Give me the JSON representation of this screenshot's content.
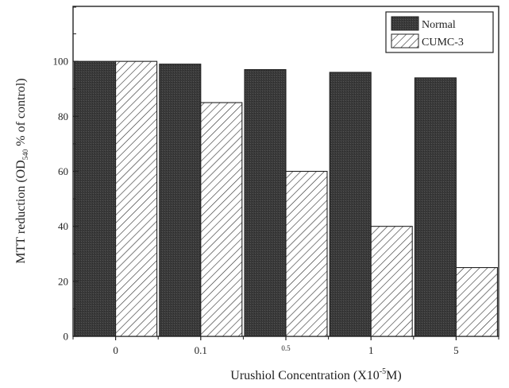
{
  "chart_data": {
    "type": "bar",
    "categories": [
      "0",
      "0.1",
      "0.5",
      "1",
      "5"
    ],
    "series": [
      {
        "name": "Normal",
        "values": [
          100,
          99,
          97,
          96,
          94
        ],
        "fill": "#3a3a3a",
        "pattern": "solid-dark"
      },
      {
        "name": "CUMC-3",
        "values": [
          100,
          85,
          60,
          40,
          25
        ],
        "fill": "#ffffff",
        "pattern": "diagonal-hatch"
      }
    ],
    "ylim": [
      0,
      120
    ],
    "yticks": [
      0,
      20,
      40,
      60,
      80,
      100
    ],
    "ylabel": {
      "prefix": "MTT reduction  (OD",
      "subscript": "540",
      "suffix": " % of control)"
    },
    "xlabel": {
      "prefix": "Urushiol Concentration (X10",
      "superscript": "-5",
      "suffix": "M)"
    },
    "legend_position": "top-right",
    "grid": false
  }
}
